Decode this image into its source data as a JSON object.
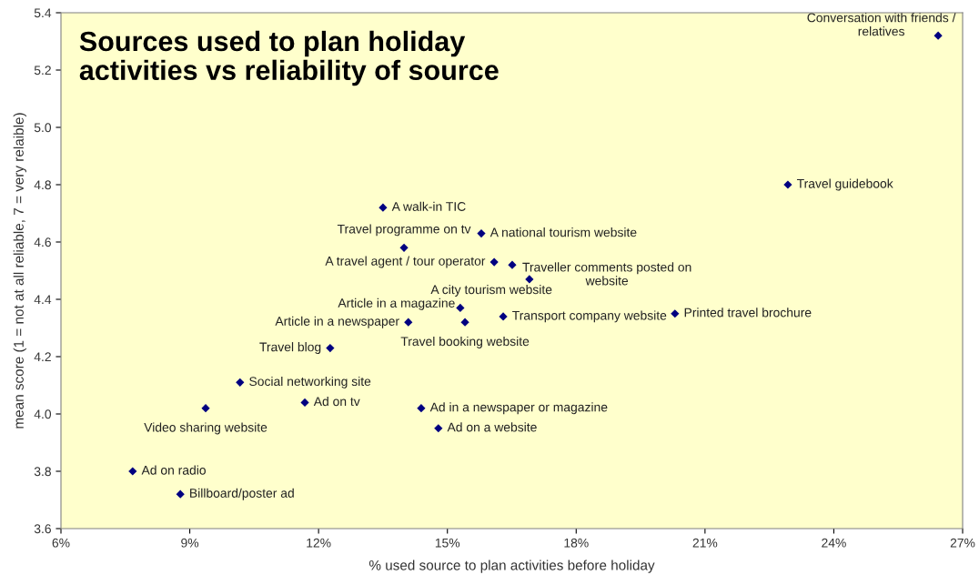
{
  "chart_data": {
    "type": "scatter",
    "title": "Sources used to plan holiday\nactivities vs reliability of source",
    "xlabel": "% used source to plan activities before holiday",
    "ylabel": "mean score (1 = not at all reliable, 7 = very relaible)",
    "x": [
      26.43,
      22.93,
      13.5,
      13.99,
      15.79,
      16.09,
      16.51,
      16.91,
      15.3,
      14.09,
      15.41,
      16.3,
      20.3,
      12.27,
      10.17,
      11.68,
      9.37,
      14.39,
      14.79,
      7.67,
      8.78
    ],
    "series": [
      {
        "color": "#000080",
        "values": [
          5.32,
          4.8,
          4.72,
          4.58,
          4.63,
          4.53,
          4.52,
          4.47,
          4.37,
          4.32,
          4.32,
          4.34,
          4.35,
          4.23,
          4.11,
          4.04,
          4.02,
          4.02,
          3.95,
          3.8,
          3.72
        ]
      }
    ],
    "marker": "diamond",
    "grid": false,
    "xlim": [
      6,
      27
    ],
    "xticks": [
      {
        "value": 6,
        "label": "6%"
      },
      {
        "value": 9,
        "label": "9%"
      },
      {
        "value": 12,
        "label": "12%"
      },
      {
        "value": 15,
        "label": "15%"
      },
      {
        "value": 18,
        "label": "18%"
      },
      {
        "value": 21,
        "label": "21%"
      },
      {
        "value": 24,
        "label": "24%"
      },
      {
        "value": 27,
        "label": "27%"
      }
    ],
    "ylim": [
      3.6,
      5.4
    ],
    "yticks": [
      {
        "value": 3.6,
        "label": "3.6"
      },
      {
        "value": 3.8,
        "label": "3.8"
      },
      {
        "value": 4.0,
        "label": "4.0"
      },
      {
        "value": 4.2,
        "label": "4.2"
      },
      {
        "value": 4.4,
        "label": "4.4"
      },
      {
        "value": 4.6,
        "label": "4.6"
      },
      {
        "value": 4.8,
        "label": "4.8"
      },
      {
        "value": 5.0,
        "label": "5.0"
      },
      {
        "value": 5.2,
        "label": "5.2"
      },
      {
        "value": 5.4,
        "label": "5.4"
      }
    ],
    "annotations": [
      {
        "text": "Conversation with friends /\nrelatives",
        "x": 26.43,
        "y": 5.32
      },
      {
        "text": "Travel guidebook",
        "x": 22.93,
        "y": 4.8
      },
      {
        "text": "A walk-in TIC",
        "x": 13.5,
        "y": 4.72
      },
      {
        "text": "Travel programme on tv",
        "x": 13.99,
        "y": 4.58
      },
      {
        "text": "A national tourism website",
        "x": 15.79,
        "y": 4.63
      },
      {
        "text": "A travel agent / tour operator",
        "x": 16.09,
        "y": 4.53
      },
      {
        "text": "Traveller comments posted on\nwebsite",
        "x": 16.51,
        "y": 4.52
      },
      {
        "text": "A city tourism website",
        "x": 16.91,
        "y": 4.47
      },
      {
        "text": "Article in a magazine",
        "x": 15.3,
        "y": 4.37
      },
      {
        "text": "Article in a newspaper",
        "x": 14.09,
        "y": 4.32
      },
      {
        "text": "Travel booking website",
        "x": 15.41,
        "y": 4.32
      },
      {
        "text": "Transport company website",
        "x": 16.3,
        "y": 4.34
      },
      {
        "text": "Printed travel brochure",
        "x": 20.3,
        "y": 4.35
      },
      {
        "text": "Travel blog",
        "x": 12.27,
        "y": 4.23
      },
      {
        "text": "Social networking site",
        "x": 10.17,
        "y": 4.11
      },
      {
        "text": "Ad on tv",
        "x": 11.68,
        "y": 4.04
      },
      {
        "text": "Video sharing website",
        "x": 9.37,
        "y": 4.02
      },
      {
        "text": "Ad in a newspaper or magazine",
        "x": 14.39,
        "y": 4.02
      },
      {
        "text": "Ad on a website",
        "x": 14.79,
        "y": 3.95
      },
      {
        "text": "Ad on radio",
        "x": 7.67,
        "y": 3.8
      },
      {
        "text": "Billboard/poster ad",
        "x": 8.78,
        "y": 3.72
      }
    ]
  }
}
